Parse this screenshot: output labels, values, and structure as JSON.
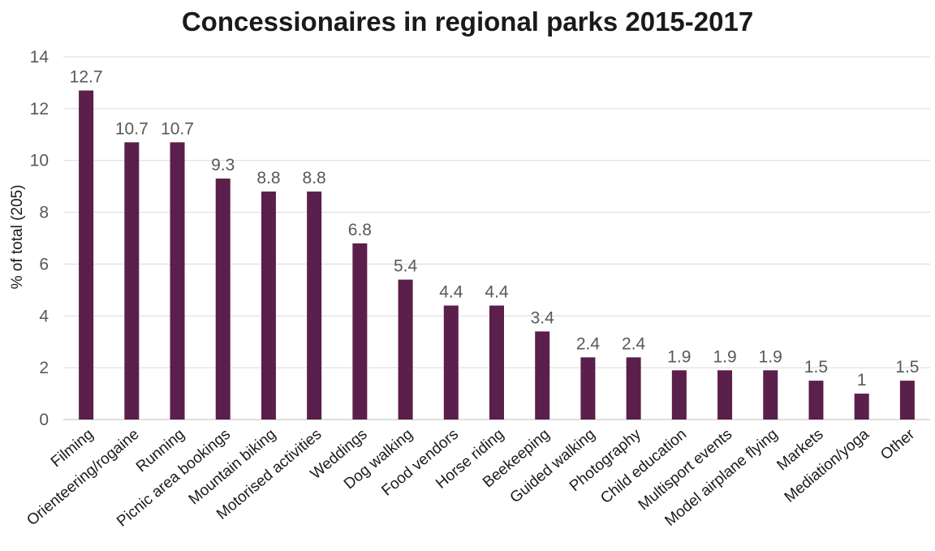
{
  "chart_data": {
    "type": "bar",
    "title": "Concessionaires in regional parks 2015-2017",
    "xlabel": "",
    "ylabel": "% of total (205)",
    "ylim": [
      0,
      14
    ],
    "yticks": [
      0,
      2,
      4,
      6,
      8,
      10,
      12,
      14
    ],
    "grid": true,
    "legend": "none",
    "bar_color": "#5a1f4a",
    "categories": [
      "Filming",
      "Orienteering/rogaine",
      "Running",
      "Picnic area bookings",
      "Mountain biking",
      "Motorised activities",
      "Weddings",
      "Dog walking",
      "Food vendors",
      "Horse riding",
      "Beekeeping",
      "Guided walking",
      "Photography",
      "Child education",
      "Multisport events",
      "Model airplane flying",
      "Markets",
      "Mediation/yoga",
      "Other"
    ],
    "values": [
      12.7,
      10.7,
      10.7,
      9.3,
      8.8,
      8.8,
      6.8,
      5.4,
      4.4,
      4.4,
      3.4,
      2.4,
      2.4,
      1.9,
      1.9,
      1.9,
      1.5,
      1,
      1.5
    ]
  }
}
